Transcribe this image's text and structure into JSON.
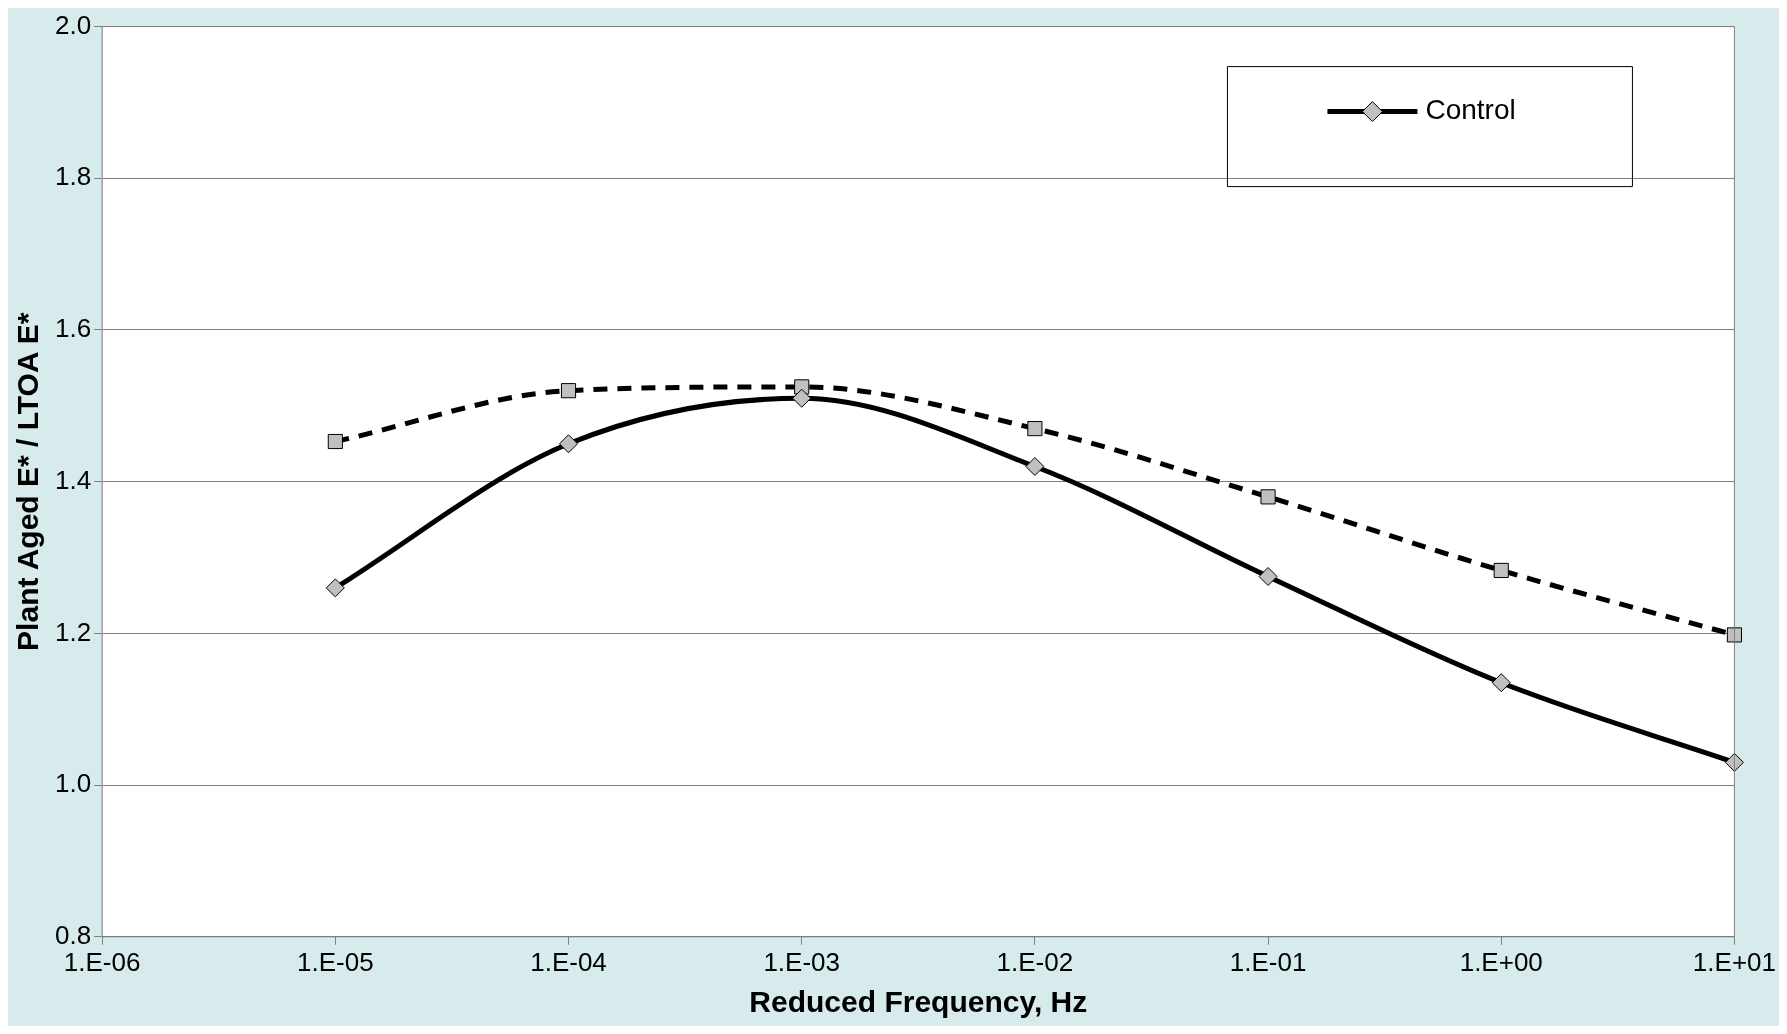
{
  "chart_data": {
    "type": "line",
    "xlabel": "Reduced Frequency, Hz",
    "ylabel": "Plant Aged E* / LTOA E*",
    "grid": "y",
    "legend": "top right",
    "categories": [
      "1.E-06",
      "1.E-05",
      "1.E-04",
      "1.E-03",
      "1.E-02",
      "1.E-01",
      "1.E+00",
      "1.E+01"
    ],
    "ylim": [
      0.8,
      2.0
    ],
    "yticks": [
      {
        "value": 0.8,
        "label": "0.8"
      },
      {
        "value": 1.0,
        "label": "1.0"
      },
      {
        "value": 1.2,
        "label": "1.2"
      },
      {
        "value": 1.4,
        "label": "1.4"
      },
      {
        "value": 1.6,
        "label": "1.6"
      },
      {
        "value": 1.8,
        "label": "1.8"
      },
      {
        "value": 2.0,
        "label": "2.0"
      }
    ],
    "series": [
      {
        "name": "Control",
        "color": "#000000",
        "marker": "diamond",
        "line_style": "solid",
        "values": [
          null,
          1.26,
          1.45,
          1.51,
          1.42,
          1.275,
          1.135,
          1.03
        ]
      },
      {
        "color": "#000000",
        "marker": "square",
        "line_style": "dashed",
        "values": [
          null,
          1.453,
          1.52,
          1.525,
          1.47,
          1.38,
          1.283,
          1.198
        ]
      }
    ]
  }
}
